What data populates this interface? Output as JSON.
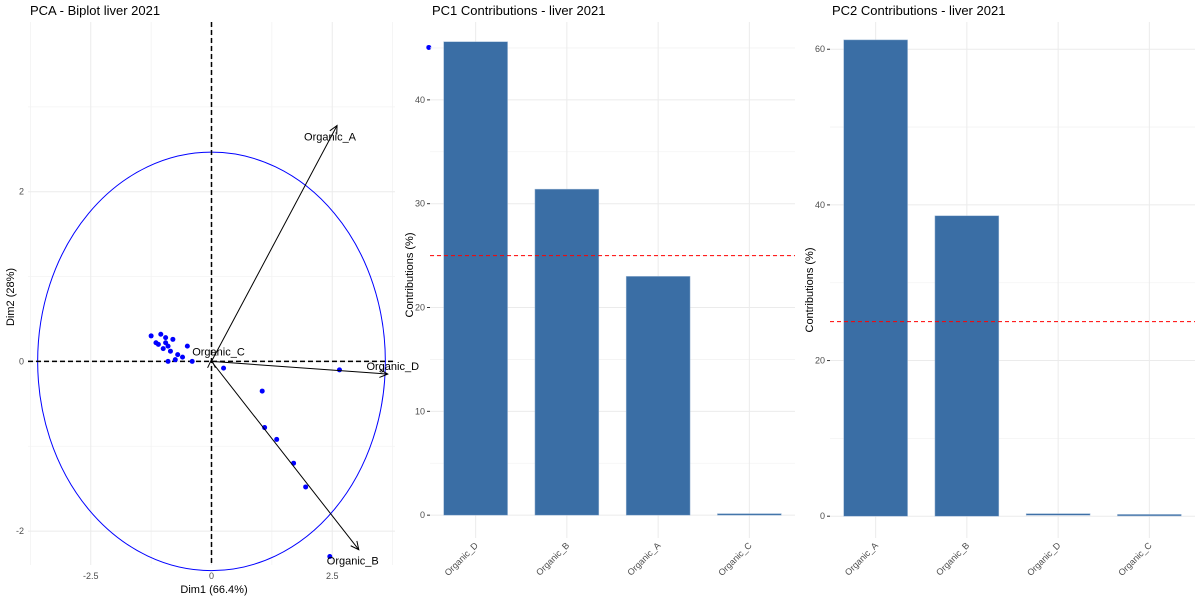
{
  "chart_data": [
    {
      "type": "scatter",
      "title": "PCA - Biplot liver 2021",
      "xlabel": "Dim1 (66.4%)",
      "ylabel": "Dim2 (28%)",
      "xlim": [
        -3.8,
        3.8
      ],
      "ylim": [
        -2.4,
        4.0
      ],
      "xticks": [
        -2.5,
        0,
        2.5
      ],
      "yticks": [
        -2,
        0,
        2
      ],
      "point_color": "#0000ff",
      "arrow_color": "#000000",
      "circle_color": "#0000ff",
      "circle_radius": 3.6,
      "points": [
        {
          "x": -1.25,
          "y": 0.3
        },
        {
          "x": -1.05,
          "y": 0.32
        },
        {
          "x": -0.95,
          "y": 0.28
        },
        {
          "x": -1.1,
          "y": 0.2
        },
        {
          "x": -1.0,
          "y": 0.15
        },
        {
          "x": -0.9,
          "y": 0.18
        },
        {
          "x": -0.8,
          "y": 0.26
        },
        {
          "x": -0.85,
          "y": 0.12
        },
        {
          "x": -1.15,
          "y": 0.22
        },
        {
          "x": -0.7,
          "y": 0.08
        },
        {
          "x": -0.5,
          "y": 0.18
        },
        {
          "x": -0.6,
          "y": 0.05
        },
        {
          "x": -0.9,
          "y": 0.0
        },
        {
          "x": -0.4,
          "y": 0.0
        },
        {
          "x": -0.75,
          "y": 0.02
        },
        {
          "x": -0.95,
          "y": 0.22
        },
        {
          "x": 0.25,
          "y": -0.08
        },
        {
          "x": 1.05,
          "y": -0.35
        },
        {
          "x": 1.1,
          "y": -0.78
        },
        {
          "x": 1.35,
          "y": -0.92
        },
        {
          "x": 1.7,
          "y": -1.2
        },
        {
          "x": 1.95,
          "y": -1.48
        },
        {
          "x": 2.45,
          "y": -2.3
        },
        {
          "x": 2.65,
          "y": -0.1
        },
        {
          "x": 4.5,
          "y": 3.7
        }
      ],
      "arrows": [
        {
          "name": "Organic_A",
          "x": 2.6,
          "y": 2.78
        },
        {
          "name": "Organic_B",
          "x": 3.05,
          "y": -2.22
        },
        {
          "name": "Organic_C",
          "x": 0.0,
          "y": 0.02
        },
        {
          "name": "Organic_D",
          "x": 3.65,
          "y": -0.15
        }
      ]
    },
    {
      "type": "bar",
      "title": "PC1 Contributions - liver 2021",
      "xlabel": "",
      "ylabel": "Contributions (%)",
      "categories": [
        "Organic_D",
        "Organic_B",
        "Organic_A",
        "Organic_C"
      ],
      "values": [
        45.6,
        31.4,
        23.0,
        0.05
      ],
      "ylim": [
        -2.2,
        47.5
      ],
      "yticks": [
        0,
        10,
        20,
        30,
        40
      ],
      "reference_line": 25,
      "bar_color": "#3a6ea5",
      "reference_color": "#ff0000"
    },
    {
      "type": "bar",
      "title": "PC2 Contributions - liver 2021",
      "xlabel": "",
      "ylabel": "Contributions (%)",
      "categories": [
        "Organic_A",
        "Organic_B",
        "Organic_D",
        "Organic_C"
      ],
      "values": [
        61.2,
        38.6,
        0.2,
        0.1
      ],
      "ylim": [
        -2.8,
        63.5
      ],
      "yticks": [
        0,
        20,
        40,
        60
      ],
      "reference_line": 25,
      "bar_color": "#3a6ea5",
      "reference_color": "#ff0000"
    }
  ]
}
